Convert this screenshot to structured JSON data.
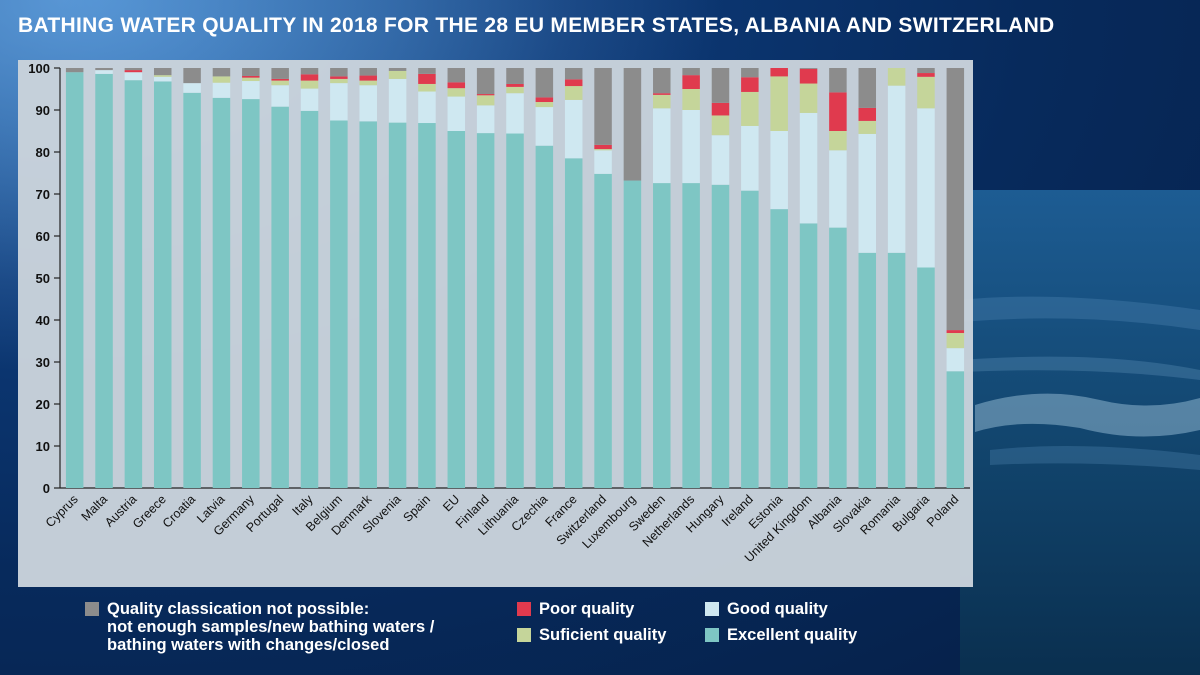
{
  "page": {
    "title": "BATHING WATER QUALITY IN 2018 FOR THE 28 EU MEMBER STATES, ALBANIA AND SWITZERLAND"
  },
  "colors": {
    "background": "#0b3570",
    "panel": "#c9d3db",
    "excellent": "#7ec6c4",
    "good": "#cfe8f1",
    "sufficient": "#c5d59a",
    "poor": "#e03a4e",
    "not_possible": "#8c8c8c"
  },
  "legend": {
    "not_possible": "Quality classication not possible:\nnot enough samples/new bathing waters /\nbathing waters with changes/closed",
    "poor": "Poor quality",
    "sufficient": "Suficient quality",
    "good": "Good quality",
    "excellent": "Excellent quality"
  },
  "chart_data": {
    "type": "bar",
    "stacked": true,
    "ylim": [
      0,
      100
    ],
    "yticks": [
      0,
      10,
      20,
      30,
      40,
      50,
      60,
      70,
      80,
      90,
      100
    ],
    "grid": false,
    "legend_position": "bottom",
    "categories": [
      "Cyprus",
      "Malta",
      "Austria",
      "Greece",
      "Croatia",
      "Latvia",
      "Germany",
      "Portugal",
      "Italy",
      "Belgium",
      "Denmark",
      "Slovenia",
      "Spain",
      "EU",
      "Finland",
      "Lithuania",
      "Czechia",
      "France",
      "Switzerland",
      "Luxembourg",
      "Sweden",
      "Netherlands",
      "Hungary",
      "Ireland",
      "Estonia",
      "United Kingdom",
      "Albania",
      "Slovakia",
      "Romania",
      "Bulgaria",
      "Poland"
    ],
    "series": [
      {
        "key": "excellent",
        "name": "Excellent quality",
        "values": [
          99.0,
          98.6,
          97.1,
          96.8,
          94.1,
          92.9,
          92.6,
          90.8,
          89.8,
          87.5,
          87.3,
          87.0,
          86.9,
          85.0,
          84.5,
          84.4,
          81.5,
          78.5,
          74.8,
          73.2,
          72.6,
          72.6,
          72.2,
          70.8,
          66.4,
          63.0,
          62.0,
          56.0,
          56.0,
          52.5,
          27.8
        ]
      },
      {
        "key": "good",
        "name": "Good quality",
        "values": [
          0.0,
          0.9,
          1.9,
          1.1,
          2.3,
          3.6,
          4.3,
          5.1,
          5.3,
          8.9,
          8.6,
          10.4,
          7.5,
          8.2,
          6.6,
          9.6,
          9.2,
          13.9,
          5.6,
          0.0,
          17.8,
          17.4,
          11.8,
          15.4,
          18.6,
          26.3,
          18.4,
          28.3,
          39.8,
          37.9,
          5.5
        ]
      },
      {
        "key": "sufficient",
        "name": "Suficient quality",
        "values": [
          0.0,
          0.0,
          0.0,
          0.4,
          0.0,
          1.5,
          0.8,
          1.1,
          1.9,
          1.0,
          1.1,
          1.9,
          1.8,
          2.0,
          2.4,
          1.5,
          1.2,
          3.3,
          0.3,
          0.0,
          3.2,
          5.0,
          4.7,
          8.1,
          13.0,
          7.0,
          4.6,
          3.1,
          4.2,
          7.5,
          3.6
        ]
      },
      {
        "key": "poor",
        "name": "Poor quality",
        "values": [
          0.0,
          0.0,
          0.5,
          0.0,
          0.0,
          0.0,
          0.4,
          0.4,
          1.5,
          0.6,
          1.2,
          0.0,
          2.4,
          1.4,
          0.3,
          0.7,
          1.1,
          1.6,
          1.0,
          0.0,
          0.4,
          3.3,
          3.0,
          3.5,
          2.0,
          3.5,
          9.2,
          3.1,
          0.0,
          0.9,
          0.7
        ]
      },
      {
        "key": "not_possible",
        "name": "Quality classication not possible",
        "values": [
          1.0,
          0.5,
          0.5,
          1.7,
          3.6,
          2.0,
          1.9,
          2.6,
          1.5,
          2.0,
          1.8,
          0.7,
          1.4,
          3.4,
          6.2,
          3.8,
          7.0,
          2.7,
          18.3,
          26.8,
          6.0,
          1.7,
          8.3,
          2.2,
          0.0,
          0.2,
          5.8,
          9.5,
          0.0,
          1.2,
          62.4
        ]
      }
    ]
  }
}
